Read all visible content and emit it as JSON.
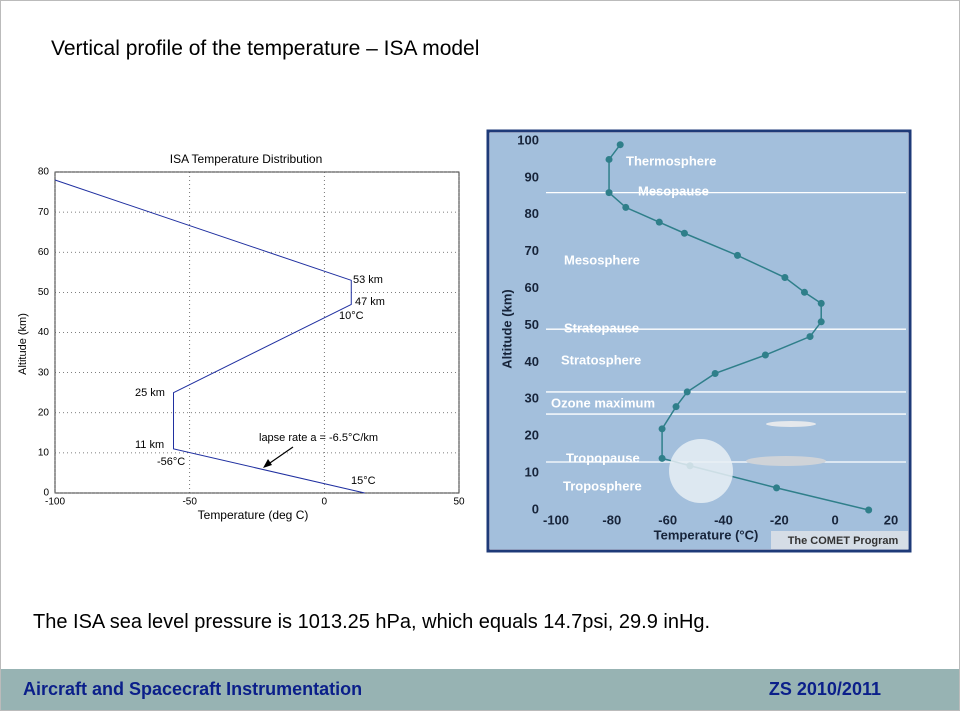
{
  "title": "Vertical profile of the temperature – ISA model",
  "body_text": "The ISA sea level pressure is 1013.25 hPa, which equals 14.7psi, 29.9 inHg.",
  "footer": {
    "left": "Aircraft and Spacecraft Instrumentation",
    "right": "ZS 2010/2011"
  },
  "chart_data": [
    {
      "type": "line",
      "title": "ISA Temperature Distribution",
      "x_label": "Temperature (deg C)",
      "y_label": "Altitude (km)",
      "x": [
        15,
        -56,
        -56,
        10,
        10,
        -100
      ],
      "values": [
        0,
        11,
        25,
        47,
        53,
        78
      ],
      "color": "#1f2fa0",
      "xlim": [
        -100,
        50
      ],
      "xticks": [
        -100,
        -50,
        0,
        50
      ],
      "ylim": [
        0,
        80
      ],
      "yticks": [
        0,
        10,
        20,
        30,
        40,
        50,
        60,
        70,
        80
      ],
      "grid": true,
      "annotations": [
        "53 km",
        "47 km",
        "10°C",
        "25 km",
        "11 km",
        "-56°C",
        "15°C",
        "lapse rate a = -6.5°C/km"
      ]
    },
    {
      "type": "line",
      "x_label": "Temperature (°C)",
      "y_label": "Altitude (km)",
      "source": "The COMET Program",
      "x": [
        12,
        -21,
        -52,
        -62,
        -62,
        -57,
        -53,
        -43,
        -25,
        -9,
        -5,
        -5,
        -11,
        -18,
        -35,
        -54,
        -63,
        -75,
        -81,
        -81,
        -77
      ],
      "values": [
        0,
        6,
        12,
        14,
        22,
        28,
        32,
        37,
        42,
        47,
        51,
        56,
        59,
        63,
        69,
        75,
        78,
        82,
        86,
        95,
        99
      ],
      "color": "#2f7f8a",
      "markers": true,
      "background": "#a3bfdc",
      "xlim": [
        -100,
        20
      ],
      "xticks": [
        -100,
        -80,
        -60,
        -40,
        -20,
        0,
        20
      ],
      "ylim": [
        0,
        100
      ],
      "yticks": [
        0,
        10,
        20,
        30,
        40,
        50,
        60,
        70,
        80,
        90,
        100
      ],
      "grid": false,
      "hlines": [
        86,
        49,
        32,
        26,
        13
      ],
      "annotations": [
        "Thermosphere",
        "Mesopause",
        "Mesosphere",
        "Stratopause",
        "Stratosphere",
        "Ozone maximum",
        "Tropopause",
        "Troposphere"
      ]
    }
  ]
}
